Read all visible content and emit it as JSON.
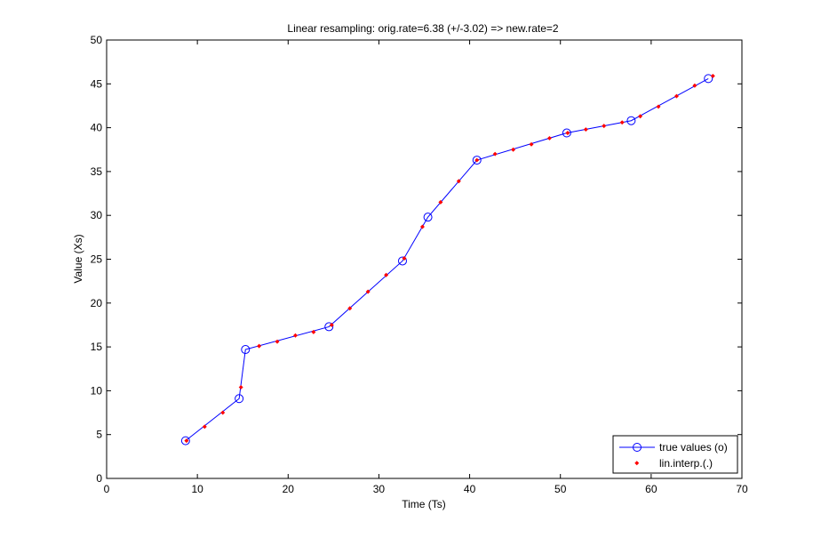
{
  "chart_data": {
    "type": "line",
    "title": "Linear resampling: orig.rate=6.38 (+/-3.02) => new.rate=2",
    "xlabel": "Time (Ts)",
    "ylabel": "Value (Xs)",
    "xlim": [
      0,
      70
    ],
    "ylim": [
      0,
      50
    ],
    "x_ticks": [
      0,
      10,
      20,
      30,
      40,
      50,
      60,
      70
    ],
    "y_ticks": [
      0,
      5,
      10,
      15,
      20,
      25,
      30,
      35,
      40,
      45,
      50
    ],
    "grid": false,
    "legend_position": "bottom-right",
    "series": [
      {
        "name": "true values (o)",
        "style": "line-circle",
        "color": "#0000ff",
        "x": [
          8.7,
          14.6,
          15.3,
          24.5,
          32.6,
          35.4,
          40.8,
          50.7,
          57.8,
          66.3
        ],
        "y": [
          4.3,
          9.1,
          14.7,
          17.3,
          24.8,
          29.8,
          36.3,
          39.4,
          40.8,
          45.6
        ]
      },
      {
        "name": "lin.interp.(.)",
        "style": "dot",
        "color": "#ff0000",
        "x": [
          8.8,
          10.8,
          12.8,
          14.8,
          16.8,
          18.8,
          20.8,
          22.8,
          24.8,
          26.8,
          28.8,
          30.8,
          32.8,
          34.8,
          36.8,
          38.8,
          40.8,
          42.8,
          44.8,
          46.8,
          48.8,
          50.8,
          52.8,
          54.8,
          56.8,
          58.8,
          60.8,
          62.8,
          64.8,
          66.8
        ],
        "y": [
          4.3,
          5.9,
          7.5,
          10.4,
          15.1,
          15.6,
          16.3,
          16.7,
          17.5,
          19.4,
          21.3,
          23.2,
          25.1,
          28.7,
          31.5,
          33.9,
          36.3,
          37.0,
          37.5,
          38.1,
          38.8,
          39.4,
          39.8,
          40.2,
          40.6,
          41.3,
          42.4,
          43.6,
          44.8,
          45.9
        ]
      }
    ]
  }
}
